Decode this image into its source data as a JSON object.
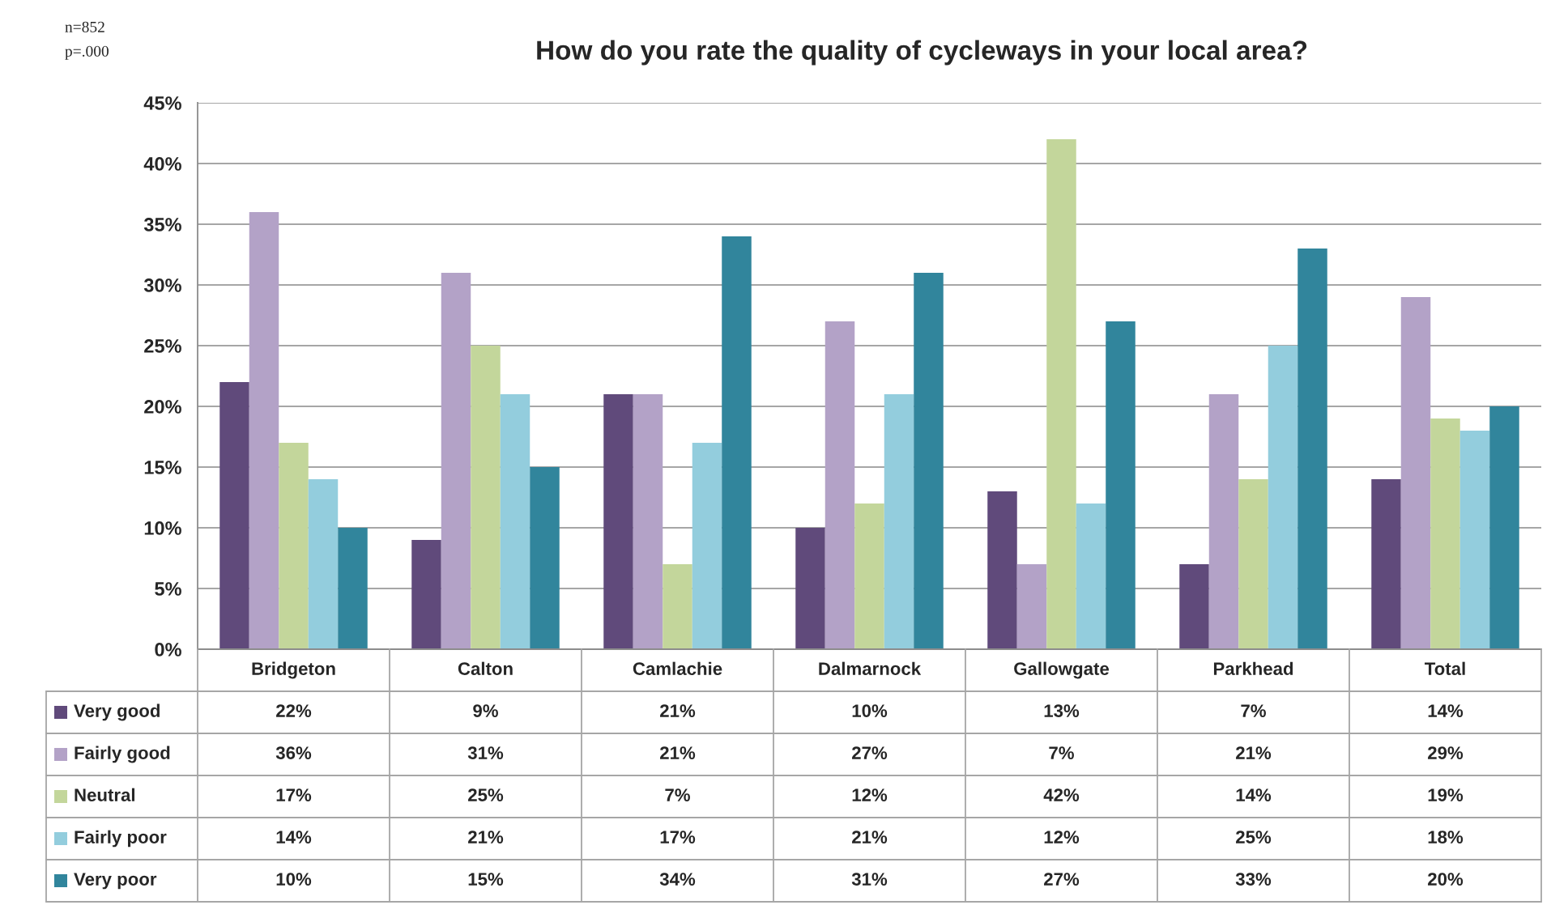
{
  "chart_data": {
    "type": "bar",
    "title": "How do you rate the quality of cycleways in your local area?",
    "annotations": [
      "n=852",
      "p=.000"
    ],
    "categories": [
      "Bridgeton",
      "Calton",
      "Camlachie",
      "Dalmarnock",
      "Gallowgate",
      "Parkhead",
      "Total"
    ],
    "series": [
      {
        "name": "Very good",
        "color": "#604a7b",
        "values": [
          22,
          9,
          21,
          10,
          13,
          7,
          14
        ],
        "value_labels": [
          "22%",
          "9%",
          "21%",
          "10%",
          "13%",
          "7%",
          "14%"
        ]
      },
      {
        "name": "Fairly good",
        "color": "#b3a2c7",
        "values": [
          36,
          31,
          21,
          27,
          7,
          21,
          29
        ],
        "value_labels": [
          "36%",
          "31%",
          "21%",
          "27%",
          "7%",
          "21%",
          "29%"
        ]
      },
      {
        "name": "Neutral",
        "color": "#c3d69b",
        "values": [
          17,
          25,
          7,
          12,
          42,
          14,
          19
        ],
        "value_labels": [
          "17%",
          "25%",
          "7%",
          "12%",
          "42%",
          "14%",
          "19%"
        ]
      },
      {
        "name": "Fairly poor",
        "color": "#93cddd",
        "values": [
          14,
          21,
          17,
          21,
          12,
          25,
          18
        ],
        "value_labels": [
          "14%",
          "21%",
          "17%",
          "21%",
          "12%",
          "25%",
          "18%"
        ]
      },
      {
        "name": "Very poor",
        "color": "#31859c",
        "values": [
          10,
          15,
          34,
          31,
          27,
          33,
          20
        ],
        "value_labels": [
          "10%",
          "15%",
          "34%",
          "31%",
          "27%",
          "33%",
          "20%"
        ]
      }
    ],
    "ylim": [
      0,
      45
    ],
    "yticks": [
      {
        "value": 0,
        "label": "0%"
      },
      {
        "value": 5,
        "label": "5%"
      },
      {
        "value": 10,
        "label": "10%"
      },
      {
        "value": 15,
        "label": "15%"
      },
      {
        "value": 20,
        "label": "20%"
      },
      {
        "value": 25,
        "label": "25%"
      },
      {
        "value": 30,
        "label": "30%"
      },
      {
        "value": 35,
        "label": "35%"
      },
      {
        "value": 40,
        "label": "40%"
      },
      {
        "value": 45,
        "label": "45%"
      }
    ],
    "grid": "y",
    "legend": "bottom"
  }
}
